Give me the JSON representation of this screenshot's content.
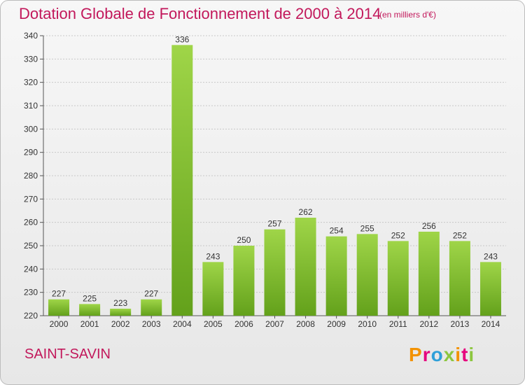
{
  "header": {
    "title": "Dotation Globale de Fonctionnement de 2000 à 2014",
    "unit": "(en milliers d'€)"
  },
  "footer": {
    "commune": "SAINT-SAVIN",
    "logo_text": "Proxiti",
    "logo_colors": [
      "#f39200",
      "#e6007e",
      "#2fa0d9",
      "#8cc63f",
      "#f39200",
      "#e6007e",
      "#8cc63f"
    ]
  },
  "colors": {
    "bar_light": "#9fd548",
    "bar_dark": "#63a11b",
    "text_accent": "#c2185b",
    "axis": "#555555"
  },
  "chart_data": {
    "type": "bar",
    "title": "Dotation Globale de Fonctionnement de 2000 à 2014",
    "subtitle": "(en milliers d'€)",
    "xlabel": "",
    "ylabel": "",
    "categories": [
      "2000",
      "2001",
      "2002",
      "2003",
      "2004",
      "2005",
      "2006",
      "2007",
      "2008",
      "2009",
      "2010",
      "2011",
      "2012",
      "2013",
      "2014"
    ],
    "values": [
      227,
      225,
      223,
      227,
      336,
      243,
      250,
      257,
      262,
      254,
      255,
      252,
      256,
      252,
      243
    ],
    "ylim": [
      220,
      340
    ],
    "yticks": [
      220,
      230,
      240,
      250,
      260,
      270,
      280,
      290,
      300,
      310,
      320,
      330,
      340
    ],
    "grid": true,
    "legend": "none"
  }
}
